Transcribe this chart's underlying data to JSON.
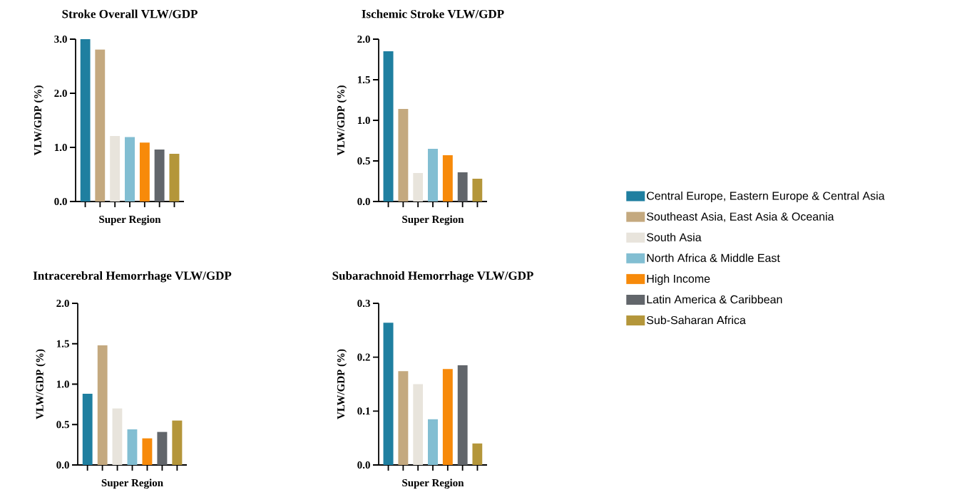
{
  "chart_data": [
    {
      "type": "bar",
      "title": "Stroke Overall VLW/GDP",
      "xlabel": "Super Region",
      "ylabel": "VLW/GDP (%)",
      "categories": [
        null,
        null,
        null,
        null,
        null,
        null,
        null
      ],
      "ylim": [
        0,
        3
      ],
      "yticks": [
        {
          "value": 0,
          "label": "0.0"
        },
        {
          "value": 1,
          "label": "1.0"
        },
        {
          "value": 2,
          "label": "2.0"
        },
        {
          "value": 3,
          "label": "3.0"
        }
      ],
      "tick_labels": "y",
      "legend": "right",
      "series": [
        {
          "name": "Central Europe, Eastern Europe & Central Asia",
          "color": "#1f7fa0",
          "values": [
            3.0,
            null,
            null,
            null,
            null,
            null,
            null
          ]
        },
        {
          "name": "Southeast Asia, East Asia & Oceania",
          "color": "#c4a97f",
          "values": [
            null,
            2.81,
            null,
            null,
            null,
            null,
            null
          ]
        },
        {
          "name": "South Asia",
          "color": "#e8e4dc",
          "values": [
            null,
            null,
            1.21,
            null,
            null,
            null,
            null
          ]
        },
        {
          "name": "North Africa & Middle East",
          "color": "#82bed2",
          "values": [
            null,
            null,
            null,
            1.19,
            null,
            null,
            null
          ]
        },
        {
          "name": "High Income",
          "color": "#f78a0a",
          "values": [
            null,
            null,
            null,
            null,
            1.09,
            null,
            null
          ]
        },
        {
          "name": "Latin America & Caribbean",
          "color": "#62666b",
          "values": [
            null,
            null,
            null,
            null,
            null,
            0.96,
            null
          ]
        },
        {
          "name": "Sub-Saharan Africa",
          "color": "#b4963a",
          "values": [
            null,
            null,
            null,
            null,
            null,
            null,
            0.88
          ]
        }
      ]
    },
    {
      "type": "bar",
      "title": "Ischemic Stroke VLW/GDP",
      "xlabel": "Super Region",
      "ylabel": "VLW/GDP (%)",
      "categories": [
        null,
        null,
        null,
        null,
        null,
        null,
        null
      ],
      "ylim": [
        0,
        2
      ],
      "yticks": [
        {
          "value": 0,
          "label": "0.0"
        },
        {
          "value": 0.5,
          "label": "0.5"
        },
        {
          "value": 1,
          "label": "1.0"
        },
        {
          "value": 1.5,
          "label": "1.5"
        },
        {
          "value": 2,
          "label": "2.0"
        }
      ],
      "tick_labels": "y",
      "series": [
        {
          "color": "#1f7fa0",
          "values": [
            1.85,
            null,
            null,
            null,
            null,
            null,
            null
          ]
        },
        {
          "color": "#c4a97f",
          "values": [
            null,
            1.14,
            null,
            null,
            null,
            null,
            null
          ]
        },
        {
          "color": "#e8e4dc",
          "values": [
            null,
            null,
            0.35,
            null,
            null,
            null,
            null
          ]
        },
        {
          "color": "#82bed2",
          "values": [
            null,
            null,
            null,
            0.65,
            null,
            null,
            null
          ]
        },
        {
          "color": "#f78a0a",
          "values": [
            null,
            null,
            null,
            null,
            0.57,
            null,
            null
          ]
        },
        {
          "color": "#62666b",
          "values": [
            null,
            null,
            null,
            null,
            null,
            0.36,
            null
          ]
        },
        {
          "color": "#b4963a",
          "values": [
            null,
            null,
            null,
            null,
            null,
            null,
            0.28
          ]
        }
      ]
    },
    {
      "type": "bar",
      "title": "Intracerebral Hemorrhage VLW/GDP",
      "xlabel": "Super Region",
      "ylabel": "VLW/GDP (%)",
      "categories": [
        null,
        null,
        null,
        null,
        null,
        null,
        null
      ],
      "ylim": [
        0,
        2
      ],
      "yticks": [
        {
          "value": 0,
          "label": "0.0"
        },
        {
          "value": 0.5,
          "label": "0.5"
        },
        {
          "value": 1,
          "label": "1.0"
        },
        {
          "value": 1.5,
          "label": "1.5"
        },
        {
          "value": 2,
          "label": "2.0"
        }
      ],
      "tick_labels": "y",
      "series": [
        {
          "color": "#1f7fa0",
          "values": [
            0.88,
            null,
            null,
            null,
            null,
            null,
            null
          ]
        },
        {
          "color": "#c4a97f",
          "values": [
            null,
            1.48,
            null,
            null,
            null,
            null,
            null
          ]
        },
        {
          "color": "#e8e4dc",
          "values": [
            null,
            null,
            0.7,
            null,
            null,
            null,
            null
          ]
        },
        {
          "color": "#82bed2",
          "values": [
            null,
            null,
            null,
            0.44,
            null,
            null,
            null
          ]
        },
        {
          "color": "#f78a0a",
          "values": [
            null,
            null,
            null,
            null,
            0.33,
            null,
            null
          ]
        },
        {
          "color": "#62666b",
          "values": [
            null,
            null,
            null,
            null,
            null,
            0.41,
            null
          ]
        },
        {
          "color": "#b4963a",
          "values": [
            null,
            null,
            null,
            null,
            null,
            null,
            0.55
          ]
        }
      ]
    },
    {
      "type": "bar",
      "title": "Subarachnoid Hemorrhage VLW/GDP",
      "xlabel": "Super Region",
      "ylabel": "VLW/GDP (%)",
      "categories": [
        null,
        null,
        null,
        null,
        null,
        null,
        null
      ],
      "ylim": [
        0,
        0.3
      ],
      "yticks": [
        {
          "value": 0,
          "label": "0.0"
        },
        0.1,
        0.2,
        0.3
      ],
      "tick_labels": "y",
      "series": [
        {
          "color": "#1f7fa0",
          "values": [
            0.264,
            null,
            null,
            null,
            null,
            null,
            null
          ]
        },
        {
          "color": "#c4a97f",
          "values": [
            null,
            0.174,
            null,
            null,
            null,
            null,
            null
          ]
        },
        {
          "color": "#e8e4dc",
          "values": [
            null,
            null,
            0.15,
            null,
            null,
            null,
            null
          ]
        },
        {
          "color": "#82bed2",
          "values": [
            null,
            null,
            null,
            0.085,
            null,
            null,
            null
          ]
        },
        {
          "color": "#f78a0a",
          "values": [
            null,
            null,
            null,
            null,
            0.178,
            null,
            null
          ]
        },
        {
          "color": "#62666b",
          "values": [
            null,
            null,
            null,
            null,
            null,
            0.185,
            null
          ]
        },
        {
          "color": "#b4963a",
          "values": [
            null,
            null,
            null,
            null,
            null,
            null,
            0.04
          ]
        }
      ]
    }
  ]
}
